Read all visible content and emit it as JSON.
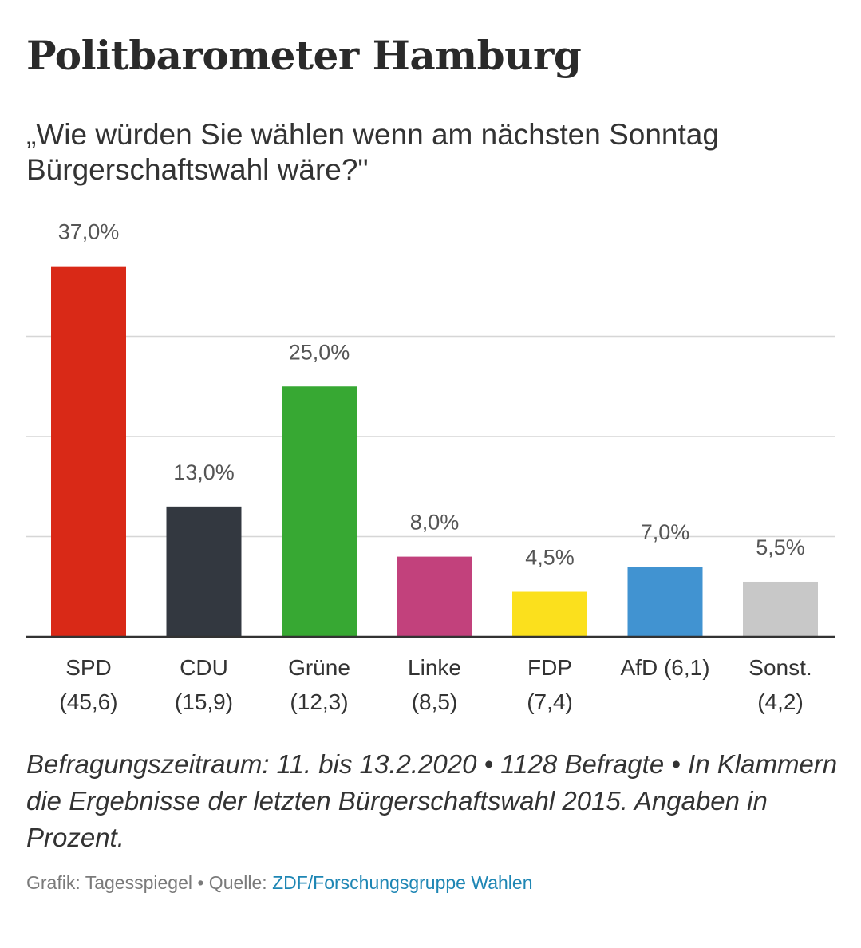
{
  "header": {
    "title": "Politbarometer Hamburg",
    "subtitle": "„Wie würden Sie wählen wenn am nächsten Sonntag Bürgerschaftswahl wäre?\""
  },
  "chart_data": {
    "type": "bar",
    "categories": [
      "SPD",
      "CDU",
      "Grüne",
      "Linke",
      "FDP",
      "AfD",
      "Sonst."
    ],
    "category_labels": [
      [
        "SPD",
        "(45,6)"
      ],
      [
        "CDU",
        "(15,9)"
      ],
      [
        "Grüne",
        "(12,3)"
      ],
      [
        "Linke",
        "(8,5)"
      ],
      [
        "FDP",
        "(7,4)"
      ],
      [
        "AfD (6,1)"
      ],
      [
        "Sonst.",
        "(4,2)"
      ]
    ],
    "values": [
      37.0,
      13.0,
      25.0,
      8.0,
      4.5,
      7.0,
      5.5
    ],
    "value_labels": [
      "37,0%",
      "13,0%",
      "25,0%",
      "8,0%",
      "4,5%",
      "7,0%",
      "5,5%"
    ],
    "previous_election_2015": [
      45.6,
      15.9,
      12.3,
      8.5,
      7.4,
      6.1,
      4.2
    ],
    "colors": [
      "#d92917",
      "#333840",
      "#37a833",
      "#c2417c",
      "#fbe01d",
      "#4193d1",
      "#c8c8c8"
    ],
    "ylim": [
      0,
      40
    ],
    "gridlines": [
      10,
      20,
      30
    ],
    "grid": true,
    "legend": "none"
  },
  "footer": {
    "note": "Befragungszeitraum: 11. bis 13.2.2020 • 1128 Befragte • In Klammern die Ergebnisse der letzten Bürgerschaftswahl 2015. Angaben in Prozent.",
    "credit_prefix": "Grafik: Tagesspiegel  •  Quelle: ",
    "source_name": "ZDF/Forschungsgruppe Wahlen"
  }
}
